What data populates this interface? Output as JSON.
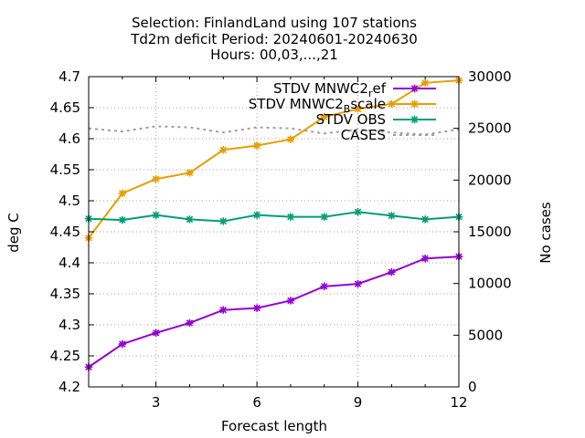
{
  "chart_data": {
    "type": "line",
    "title_lines": [
      "Selection: FinlandLand using   107 stations",
      "Td2m deficit   Period: 20240601-20240630",
      "Hours: 00,03,...,21"
    ],
    "xlabel": "Forecast length",
    "ylabel": "deg C",
    "y2label": "No cases",
    "xlim": [
      1,
      12
    ],
    "ylim": [
      4.2,
      4.7
    ],
    "y2lim": [
      0,
      30000
    ],
    "xticks": [
      3,
      6,
      9,
      12
    ],
    "yticks": [
      4.2,
      4.25,
      4.3,
      4.35,
      4.4,
      4.45,
      4.5,
      4.55,
      4.6,
      4.65,
      4.7
    ],
    "y2ticks": [
      0,
      5000,
      10000,
      15000,
      20000,
      25000,
      30000
    ],
    "ytick_labels": [
      "4.2",
      "4.25",
      "4.3",
      "4.35",
      "4.4",
      "4.45",
      "4.5",
      "4.55",
      "4.6",
      "4.65",
      "4.7"
    ],
    "y2tick_labels": [
      "0",
      "5000",
      "10000",
      "15000",
      "20000",
      "25000",
      "30000"
    ],
    "grid": true,
    "legend_position": "top-right",
    "x": [
      1,
      2,
      3,
      4,
      5,
      6,
      7,
      8,
      9,
      10,
      11,
      12
    ],
    "series": [
      {
        "name": "STDV MNWC2_ref",
        "label_main": "STDV MNWC2",
        "label_sub": "r",
        "label_tail": "ef",
        "color": "#9400d3",
        "axis": "y",
        "values": [
          4.232,
          4.269,
          4.287,
          4.303,
          4.324,
          4.327,
          4.339,
          4.362,
          4.366,
          4.385,
          4.407,
          4.41
        ]
      },
      {
        "name": "STDV MNWC2_Bscale",
        "label_main": "STDV MNWC2",
        "label_sub": "B",
        "label_tail": "scale",
        "color": "#e69f00",
        "axis": "y",
        "values": [
          4.44,
          4.512,
          4.535,
          4.545,
          4.582,
          4.589,
          4.599,
          4.635,
          4.648,
          4.656,
          4.69,
          4.694
        ]
      },
      {
        "name": "STDV OBS",
        "label_main": "STDV OBS",
        "label_sub": "",
        "label_tail": "",
        "color": "#009e73",
        "axis": "y",
        "values": [
          4.471,
          4.469,
          4.477,
          4.47,
          4.467,
          4.477,
          4.474,
          4.474,
          4.482,
          4.476,
          4.47,
          4.474
        ]
      },
      {
        "name": "CASES",
        "label_main": "CASES",
        "label_sub": "",
        "label_tail": "",
        "color": "#a0a0a0",
        "axis": "y2",
        "dashed": true,
        "values": [
          25000,
          24700,
          25200,
          25100,
          24600,
          25100,
          25000,
          24500,
          24900,
          24600,
          24400,
          24900
        ]
      }
    ]
  }
}
